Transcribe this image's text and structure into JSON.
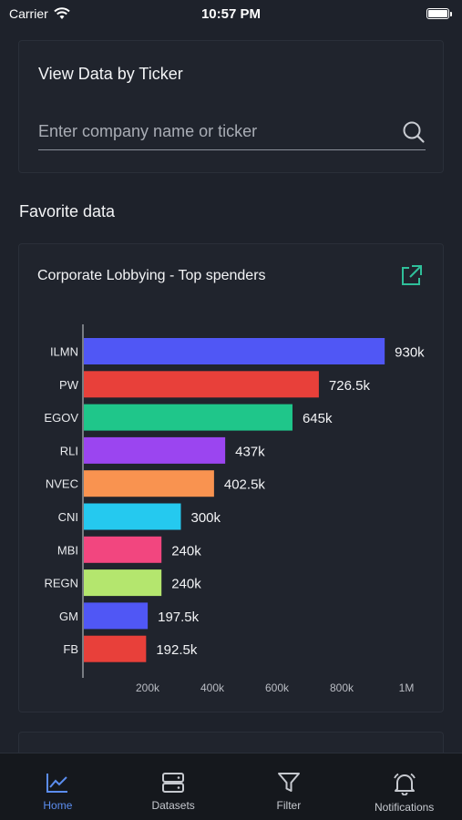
{
  "status_bar": {
    "carrier": "Carrier",
    "time": "10:57 PM",
    "battery_level": 1.0
  },
  "ticker_search": {
    "title": "View Data by Ticker",
    "placeholder": "Enter company name or ticker"
  },
  "favorites": {
    "section_title": "Favorite data",
    "card_title": "Corporate Lobbying - Top spenders"
  },
  "chart_data": {
    "type": "bar",
    "orientation": "horizontal",
    "title": "Corporate Lobbying - Top spenders",
    "categories": [
      "ILMN",
      "PW",
      "EGOV",
      "RLI",
      "NVEC",
      "CNI",
      "MBI",
      "REGN",
      "GM",
      "FB"
    ],
    "values": [
      930000,
      726500,
      645000,
      437000,
      402500,
      300000,
      240000,
      240000,
      197500,
      192500
    ],
    "value_labels": [
      "930k",
      "726.5k",
      "645k",
      "437k",
      "402.5k",
      "300k",
      "240k",
      "240k",
      "197.5k",
      "192.5k"
    ],
    "colors": [
      "#5057f5",
      "#e8403a",
      "#1fc68a",
      "#9b45f0",
      "#f99350",
      "#25c9ef",
      "#f2467f",
      "#b4e66e",
      "#5057f5",
      "#e8403a"
    ],
    "x_ticks": [
      200000,
      400000,
      600000,
      800000,
      1000000
    ],
    "x_tick_labels": [
      "200k",
      "400k",
      "600k",
      "800k",
      "1M"
    ],
    "xlim": [
      0,
      1000000
    ],
    "grid": false
  },
  "tabs": [
    {
      "label": "Home",
      "icon": "chart-line-icon",
      "active": true
    },
    {
      "label": "Datasets",
      "icon": "server-icon",
      "active": false
    },
    {
      "label": "Filter",
      "icon": "filter-icon",
      "active": false
    },
    {
      "label": "Notifications",
      "icon": "bell-icon",
      "active": false
    }
  ],
  "colors": {
    "accent": "#5b8def",
    "link_icon": "#2fbf9a",
    "background": "#1e222b"
  }
}
